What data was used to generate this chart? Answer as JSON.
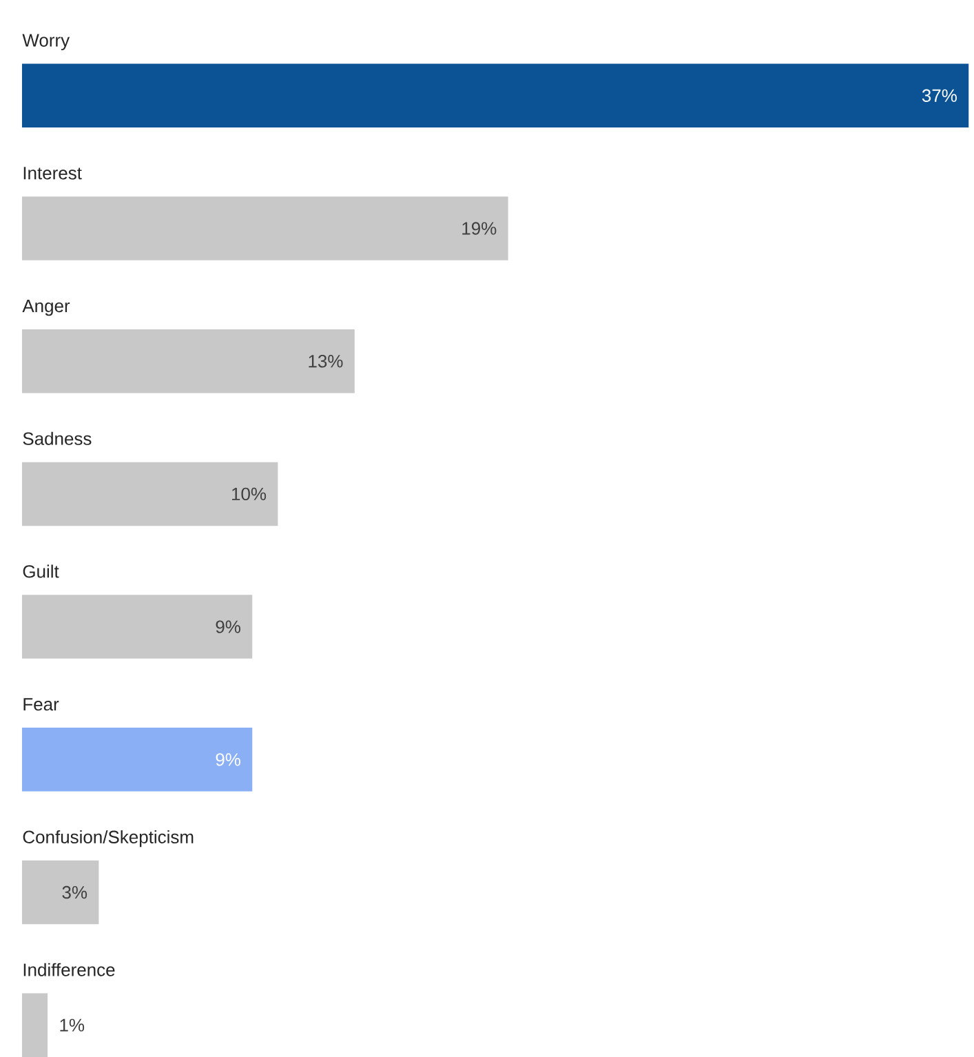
{
  "chart_data": {
    "type": "bar",
    "orientation": "horizontal",
    "categories": [
      "Worry",
      "Interest",
      "Anger",
      "Sadness",
      "Guilt",
      "Fear",
      "Confusion/Skepticism",
      "Indifference"
    ],
    "values": [
      37,
      19,
      13,
      10,
      9,
      9,
      3,
      1
    ],
    "colors": [
      "#0b5394",
      "#c8c8c8",
      "#c8c8c8",
      "#c8c8c8",
      "#c8c8c8",
      "#8aaff5",
      "#c8c8c8",
      "#c8c8c8"
    ],
    "value_labels": [
      "37%",
      "19%",
      "13%",
      "10%",
      "9%",
      "9%",
      "3%",
      "1%"
    ]
  }
}
